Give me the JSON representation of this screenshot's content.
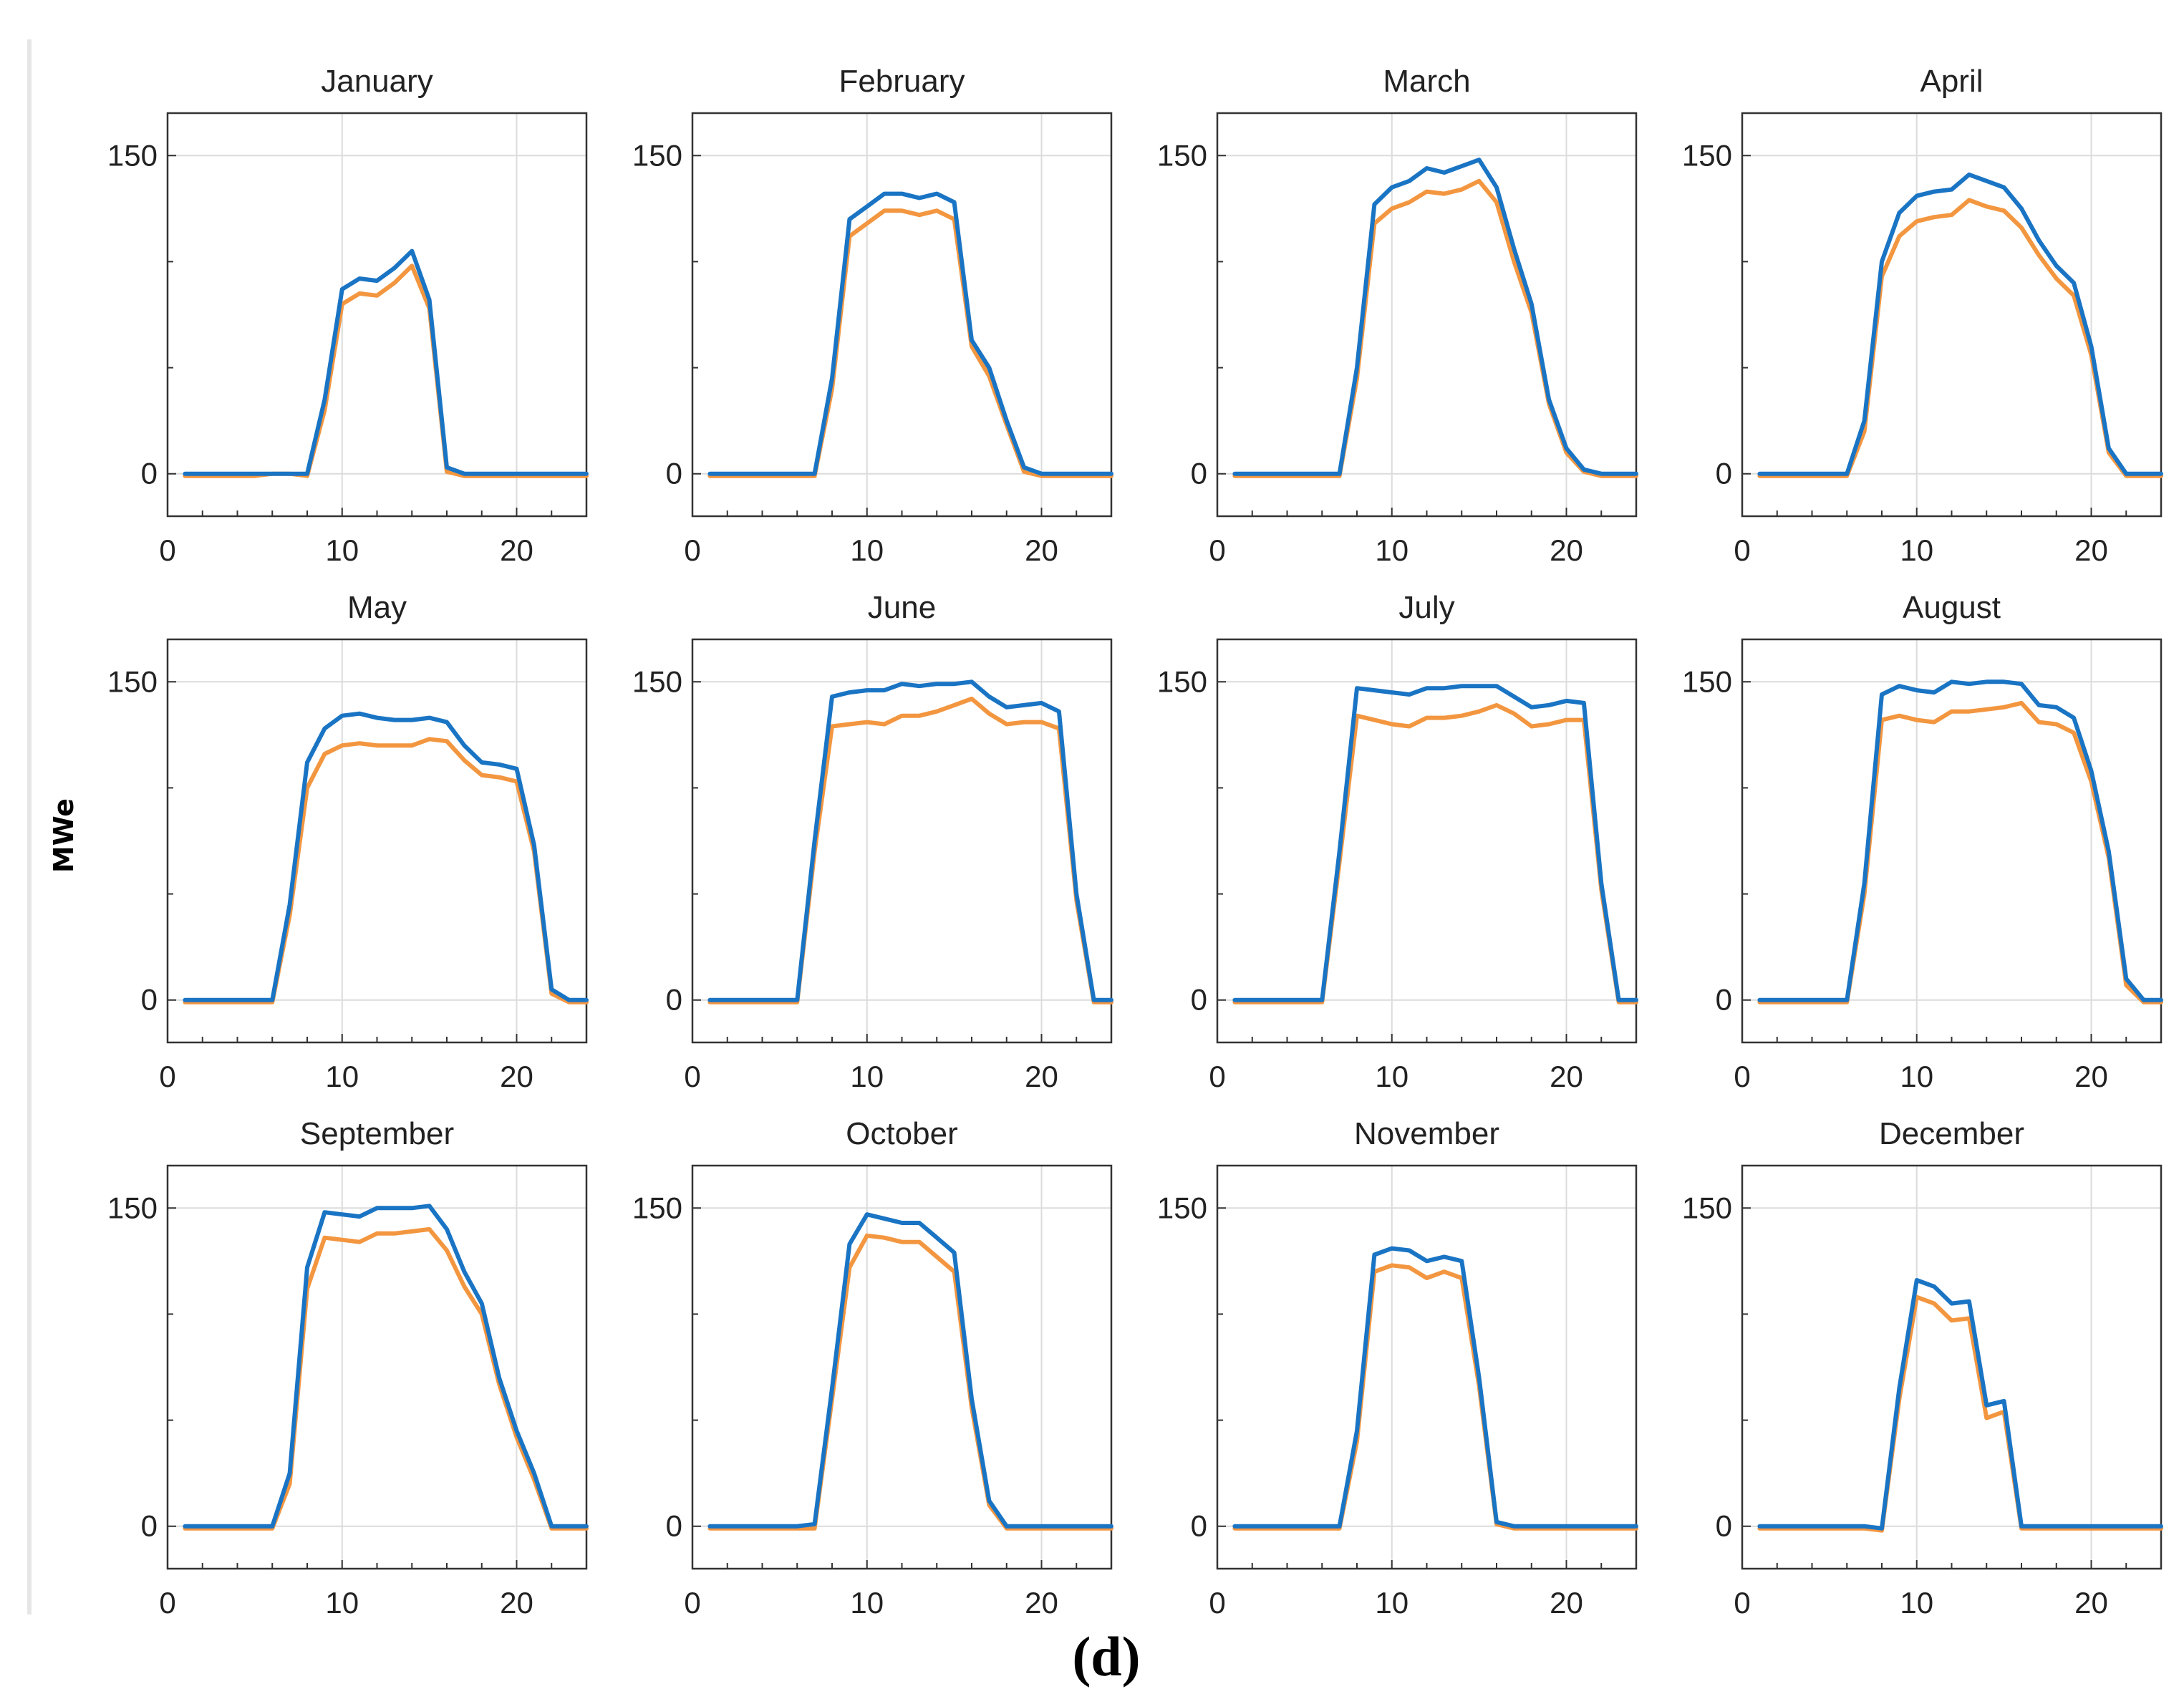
{
  "figure": {
    "ylabel": "MWe",
    "caption": "(d)"
  },
  "chart_data": {
    "type": "line",
    "layout": "grid 3 rows x 4 columns",
    "xlim": [
      0,
      24
    ],
    "ylim": [
      -20,
      170
    ],
    "xticks": [
      0,
      10,
      20
    ],
    "yticks": [
      0,
      150
    ],
    "colors": {
      "series_a": "#1a74c4",
      "series_b": "#f39640"
    },
    "hours": [
      1,
      2,
      3,
      4,
      5,
      6,
      7,
      8,
      9,
      10,
      11,
      12,
      13,
      14,
      15,
      16,
      17,
      18,
      19,
      20,
      21,
      22,
      23,
      24
    ],
    "panels": [
      {
        "title": "January",
        "series": [
          {
            "name": "series_a",
            "values": [
              0,
              0,
              0,
              0,
              0,
              0,
              0,
              0,
              35,
              87,
              92,
              91,
              97,
              105,
              82,
              3,
              0,
              0,
              0,
              0,
              0,
              0,
              0,
              0
            ]
          },
          {
            "name": "series_b",
            "values": [
              -1,
              -1,
              -1,
              -1,
              -1,
              0,
              0,
              -1,
              30,
              80,
              85,
              84,
              90,
              98,
              78,
              1,
              -1,
              -1,
              -1,
              -1,
              -1,
              -1,
              -1,
              -1
            ]
          }
        ]
      },
      {
        "title": "February",
        "series": [
          {
            "name": "series_a",
            "values": [
              0,
              0,
              0,
              0,
              0,
              0,
              0,
              45,
              120,
              126,
              132,
              132,
              130,
              132,
              128,
              63,
              50,
              25,
              3,
              0,
              0,
              0,
              0,
              0
            ]
          },
          {
            "name": "series_b",
            "values": [
              -1,
              -1,
              -1,
              -1,
              -1,
              -1,
              -1,
              40,
              112,
              118,
              124,
              124,
              122,
              124,
              120,
              60,
              46,
              23,
              1,
              -1,
              -1,
              -1,
              -1,
              -1
            ]
          }
        ]
      },
      {
        "title": "March",
        "series": [
          {
            "name": "series_a",
            "values": [
              0,
              0,
              0,
              0,
              0,
              0,
              0,
              50,
              127,
              135,
              138,
              144,
              142,
              145,
              148,
              135,
              106,
              80,
              35,
              12,
              2,
              0,
              0,
              0
            ]
          },
          {
            "name": "series_b",
            "values": [
              -1,
              -1,
              -1,
              -1,
              -1,
              -1,
              -1,
              45,
              118,
              125,
              128,
              133,
              132,
              134,
              138,
              128,
              100,
              76,
              33,
              10,
              1,
              -1,
              -1,
              -1
            ]
          }
        ]
      },
      {
        "title": "April",
        "series": [
          {
            "name": "series_a",
            "values": [
              0,
              0,
              0,
              0,
              0,
              0,
              25,
              100,
              123,
              131,
              133,
              134,
              141,
              138,
              135,
              125,
              110,
              98,
              90,
              60,
              12,
              0,
              0,
              0
            ]
          },
          {
            "name": "series_b",
            "values": [
              -1,
              -1,
              -1,
              -1,
              -1,
              -1,
              20,
              93,
              112,
              119,
              121,
              122,
              129,
              126,
              124,
              116,
              103,
              92,
              84,
              56,
              10,
              -1,
              -1,
              -1
            ]
          }
        ]
      },
      {
        "title": "May",
        "series": [
          {
            "name": "series_a",
            "values": [
              0,
              0,
              0,
              0,
              0,
              0,
              45,
              112,
              128,
              134,
              135,
              133,
              132,
              132,
              133,
              131,
              120,
              112,
              111,
              109,
              73,
              5,
              0,
              0
            ]
          },
          {
            "name": "series_b",
            "values": [
              -1,
              -1,
              -1,
              -1,
              -1,
              -1,
              40,
              100,
              116,
              120,
              121,
              120,
              120,
              120,
              123,
              122,
              113,
              106,
              105,
              103,
              70,
              3,
              -1,
              -1
            ]
          }
        ]
      },
      {
        "title": "June",
        "series": [
          {
            "name": "series_a",
            "values": [
              0,
              0,
              0,
              0,
              0,
              0,
              75,
              143,
              145,
              146,
              146,
              149,
              148,
              149,
              149,
              150,
              143,
              138,
              139,
              140,
              136,
              50,
              0,
              0
            ]
          },
          {
            "name": "series_b",
            "values": [
              -1,
              -1,
              -1,
              -1,
              -1,
              -1,
              70,
              129,
              130,
              131,
              130,
              134,
              134,
              136,
              139,
              142,
              135,
              130,
              131,
              131,
              128,
              47,
              -1,
              -1
            ]
          }
        ]
      },
      {
        "title": "July",
        "series": [
          {
            "name": "series_a",
            "values": [
              0,
              0,
              0,
              0,
              0,
              0,
              70,
              147,
              146,
              145,
              144,
              147,
              147,
              148,
              148,
              148,
              143,
              138,
              139,
              141,
              140,
              55,
              0,
              0
            ]
          },
          {
            "name": "series_b",
            "values": [
              -1,
              -1,
              -1,
              -1,
              -1,
              -1,
              65,
              134,
              132,
              130,
              129,
              133,
              133,
              134,
              136,
              139,
              135,
              129,
              130,
              132,
              132,
              52,
              -1,
              -1
            ]
          }
        ]
      },
      {
        "title": "August",
        "series": [
          {
            "name": "series_a",
            "values": [
              0,
              0,
              0,
              0,
              0,
              0,
              55,
              144,
              148,
              146,
              145,
              150,
              149,
              150,
              150,
              149,
              139,
              138,
              133,
              108,
              70,
              10,
              0,
              0
            ]
          },
          {
            "name": "series_b",
            "values": [
              -1,
              -1,
              -1,
              -1,
              -1,
              -1,
              50,
              132,
              134,
              132,
              131,
              136,
              136,
              137,
              138,
              140,
              131,
              130,
              126,
              103,
              67,
              7,
              -1,
              -1
            ]
          }
        ]
      },
      {
        "title": "September",
        "series": [
          {
            "name": "series_a",
            "values": [
              0,
              0,
              0,
              0,
              0,
              0,
              25,
              122,
              148,
              147,
              146,
              150,
              150,
              150,
              151,
              140,
              120,
              105,
              70,
              45,
              25,
              0,
              0,
              0
            ]
          },
          {
            "name": "series_b",
            "values": [
              -1,
              -1,
              -1,
              -1,
              -1,
              -1,
              20,
              112,
              136,
              135,
              134,
              138,
              138,
              139,
              140,
              130,
              113,
              100,
              67,
              42,
              22,
              -1,
              -1,
              -1
            ]
          }
        ]
      },
      {
        "title": "October",
        "series": [
          {
            "name": "series_a",
            "values": [
              0,
              0,
              0,
              0,
              0,
              0,
              1,
              65,
              133,
              147,
              145,
              143,
              143,
              136,
              129,
              60,
              12,
              0,
              0,
              0,
              0,
              0,
              0,
              0
            ]
          },
          {
            "name": "series_b",
            "values": [
              -1,
              -1,
              -1,
              -1,
              -1,
              -1,
              -1,
              60,
              122,
              137,
              136,
              134,
              134,
              127,
              120,
              56,
              10,
              -1,
              -1,
              -1,
              -1,
              -1,
              -1,
              -1
            ]
          }
        ]
      },
      {
        "title": "November",
        "series": [
          {
            "name": "series_a",
            "values": [
              0,
              0,
              0,
              0,
              0,
              0,
              0,
              45,
              128,
              131,
              130,
              125,
              127,
              125,
              70,
              2,
              0,
              0,
              0,
              0,
              0,
              0,
              0,
              0
            ]
          },
          {
            "name": "series_b",
            "values": [
              -1,
              -1,
              -1,
              -1,
              -1,
              -1,
              -1,
              40,
              120,
              123,
              122,
              117,
              120,
              117,
              66,
              1,
              -1,
              -1,
              -1,
              -1,
              -1,
              -1,
              -1,
              -1
            ]
          }
        ]
      },
      {
        "title": "December",
        "series": [
          {
            "name": "series_a",
            "values": [
              0,
              0,
              0,
              0,
              0,
              0,
              0,
              -1,
              65,
              116,
              113,
              105,
              106,
              57,
              59,
              0,
              0,
              0,
              0,
              0,
              0,
              0,
              0,
              0
            ]
          },
          {
            "name": "series_b",
            "values": [
              -1,
              -1,
              -1,
              -1,
              -1,
              -1,
              -1,
              -2,
              60,
              108,
              105,
              97,
              98,
              51,
              54,
              -1,
              -1,
              -1,
              -1,
              -1,
              -1,
              -1,
              -1,
              -1
            ]
          }
        ]
      }
    ]
  }
}
